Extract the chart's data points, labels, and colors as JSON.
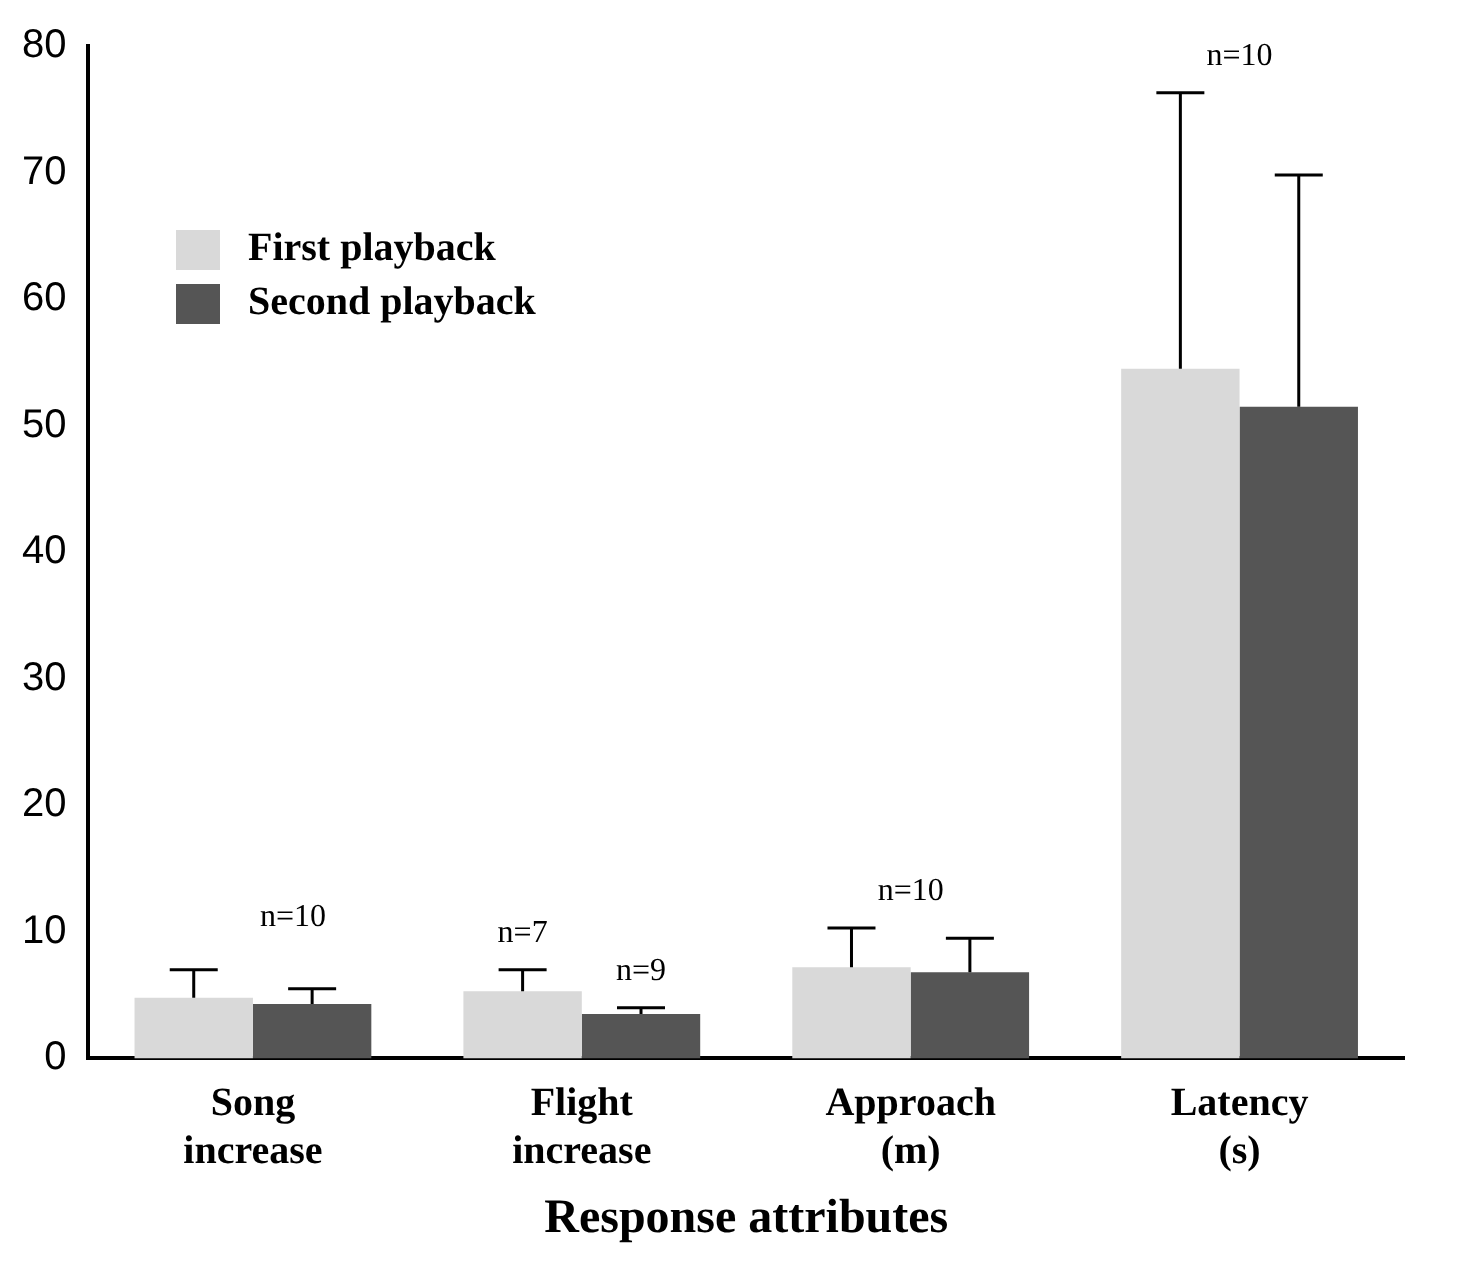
{
  "chart_data": {
    "type": "bar",
    "xlabel": "Response attributes",
    "categories": [
      "Song increase",
      "Flight increase",
      "Approach (m)",
      "Latency (s)"
    ],
    "series": [
      {
        "name": "First playback",
        "color": "#d9d9d9",
        "values": [
          4.8,
          5.3,
          7.2,
          54.5
        ],
        "errors": [
          [
            4.8,
            7
          ],
          [
            5.3,
            7
          ],
          [
            7.2,
            10.3
          ],
          [
            54.5,
            76.3
          ]
        ]
      },
      {
        "name": "Second playback",
        "color": "#555555",
        "values": [
          4.3,
          3.5,
          6.8,
          51.5
        ],
        "errors": [
          [
            4.3,
            5.5
          ],
          [
            3.5,
            4
          ],
          [
            6.8,
            9.5
          ],
          [
            51.5,
            69.8
          ]
        ]
      }
    ],
    "annotations": [
      "n=10",
      "n=7",
      "n=9",
      "n=10",
      "n=10"
    ],
    "ylim": [
      0,
      80
    ],
    "yticks": [
      0,
      10,
      20,
      30,
      40,
      50,
      60,
      70,
      80
    ],
    "grid": false,
    "legend": "top left"
  }
}
